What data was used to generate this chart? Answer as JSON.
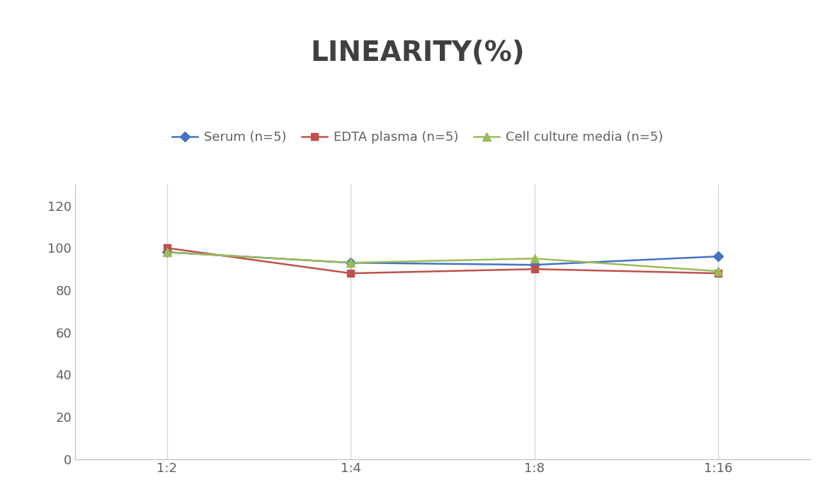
{
  "title": "LINEARITY(%)",
  "title_fontsize": 28,
  "title_fontweight": "bold",
  "title_color": "#404040",
  "x_labels": [
    "1:2",
    "1:4",
    "1:8",
    "1:16"
  ],
  "series": [
    {
      "label": "Serum (n=5)",
      "values": [
        98,
        93,
        92,
        96
      ],
      "color": "#4472C4",
      "marker": "D",
      "markersize": 7,
      "linewidth": 1.8
    },
    {
      "label": "EDTA plasma (n=5)",
      "values": [
        100,
        88,
        90,
        88
      ],
      "color": "#C0504D",
      "marker": "s",
      "markersize": 7,
      "linewidth": 1.8
    },
    {
      "label": "Cell culture media (n=5)",
      "values": [
        98,
        93,
        95,
        89
      ],
      "color": "#9BBB59",
      "marker": "^",
      "markersize": 8,
      "linewidth": 1.8
    }
  ],
  "ylim": [
    0,
    130
  ],
  "yticks": [
    0,
    20,
    40,
    60,
    80,
    100,
    120
  ],
  "background_color": "#FFFFFF",
  "grid_color": "#D8D8D8",
  "legend_fontsize": 13,
  "tick_fontsize": 13,
  "tick_color": "#606060"
}
